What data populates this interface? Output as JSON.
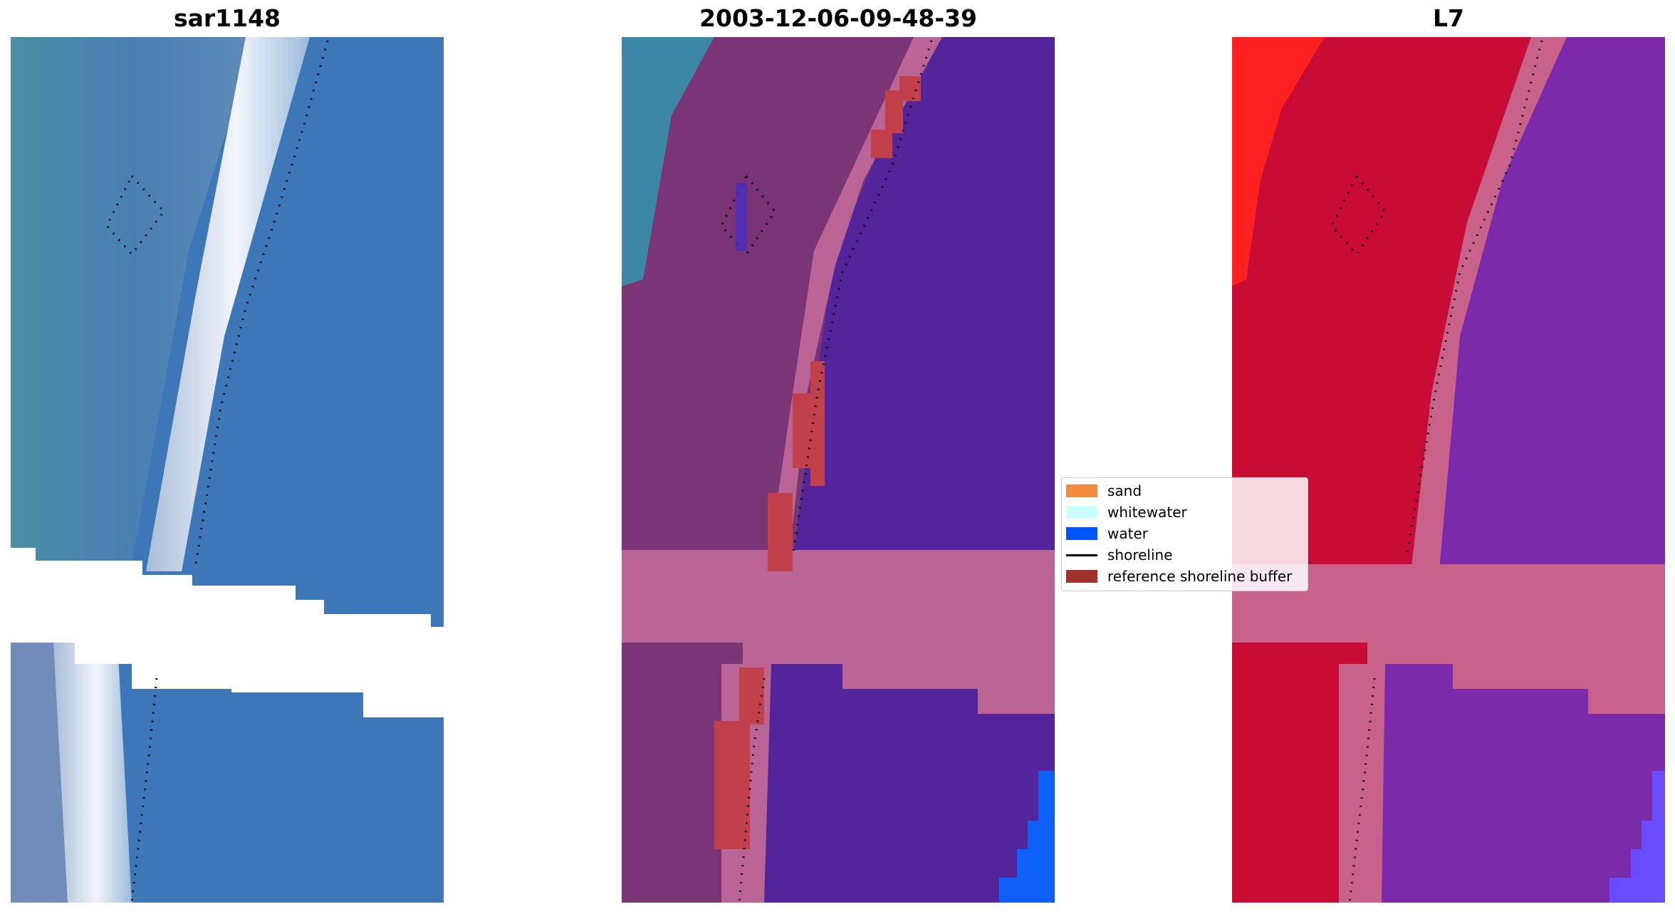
{
  "panels": {
    "rgb": {
      "title": "sar1148"
    },
    "classified": {
      "title": "2003-12-06-09-48-39"
    },
    "index": {
      "title": "L7"
    }
  },
  "legend": {
    "items": [
      {
        "label": "sand",
        "color": "#f28c3f",
        "kind": "patch"
      },
      {
        "label": "whitewater",
        "color": "#ccffff",
        "kind": "patch"
      },
      {
        "label": "water",
        "color": "#0055ff",
        "kind": "patch"
      },
      {
        "label": "shoreline",
        "color": "#000000",
        "kind": "line"
      },
      {
        "label": "reference shoreline buffer",
        "color": "#a0322e",
        "kind": "patch"
      }
    ]
  },
  "colors": {
    "rgb_water": "#3d77b8",
    "rgb_land": "#4a86a6",
    "rgb_surf": "#dde6f2",
    "class_land": "#7a3576",
    "class_buffer": "#ba6596",
    "class_water": "#54249a",
    "class_red": "#c2404c",
    "class_blue": "#0f60f8",
    "index_red": "#c90c36",
    "index_bright": "#ff2020",
    "index_pink": "#c8628a",
    "index_purple": "#7a2aa8",
    "nodata": "#ffffff"
  }
}
